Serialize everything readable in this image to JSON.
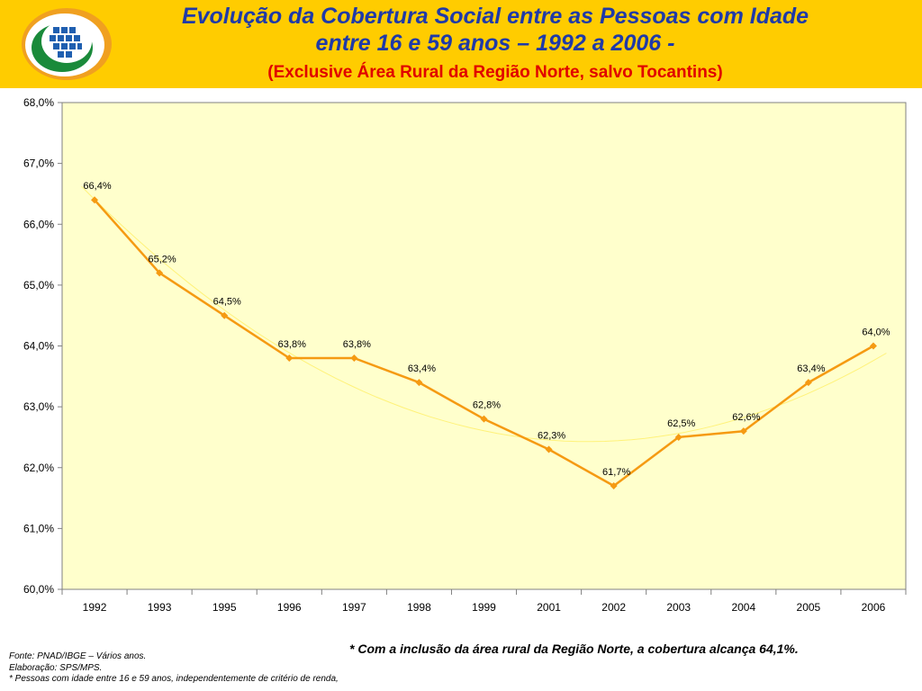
{
  "header": {
    "title_line1": "Evolução da Cobertura Social entre as Pessoas com Idade",
    "title_line2": "entre 16 e 59 anos – 1992 a 2006 -",
    "subtitle": "(Exclusive Área Rural da Região Norte, salvo Tocantins)"
  },
  "colors": {
    "header_bg": "#ffcc00",
    "title": "#1f3aa8",
    "subtitle": "#e00000",
    "plot_bg": "#ffffcc",
    "series_line": "#f59a12",
    "trend_line": "#fff27a"
  },
  "chart_data": {
    "type": "line",
    "categories": [
      "1992",
      "1993",
      "1995",
      "1996",
      "1997",
      "1998",
      "1999",
      "2001",
      "2002",
      "2003",
      "2004",
      "2005",
      "2006"
    ],
    "values": [
      66.4,
      65.2,
      64.5,
      63.8,
      63.8,
      63.4,
      62.8,
      62.3,
      61.7,
      62.5,
      62.6,
      63.4,
      64.0
    ],
    "data_labels": [
      "66,4%",
      "65,2%",
      "64,5%",
      "63,8%",
      "63,8%",
      "63,4%",
      "62,8%",
      "62,3%",
      "61,7%",
      "62,5%",
      "62,6%",
      "63,4%",
      "64,0%"
    ],
    "ylim": [
      60,
      68
    ],
    "y_ticks": [
      "60,0%",
      "61,0%",
      "62,0%",
      "63,0%",
      "64,0%",
      "65,0%",
      "66,0%",
      "67,0%",
      "68,0%"
    ],
    "trendline": "polynomial",
    "grid": false,
    "legend": "none"
  },
  "note": "* Com a inclusão da área rural da Região Norte, a cobertura alcança 64,1%.",
  "footnotes": [
    "Fonte: PNAD/IBGE – Vários anos.",
    "Elaboração: SPS/MPS.",
    "* Pessoas com idade entre 16 e 59 anos, independentemente de critério de renda,"
  ]
}
